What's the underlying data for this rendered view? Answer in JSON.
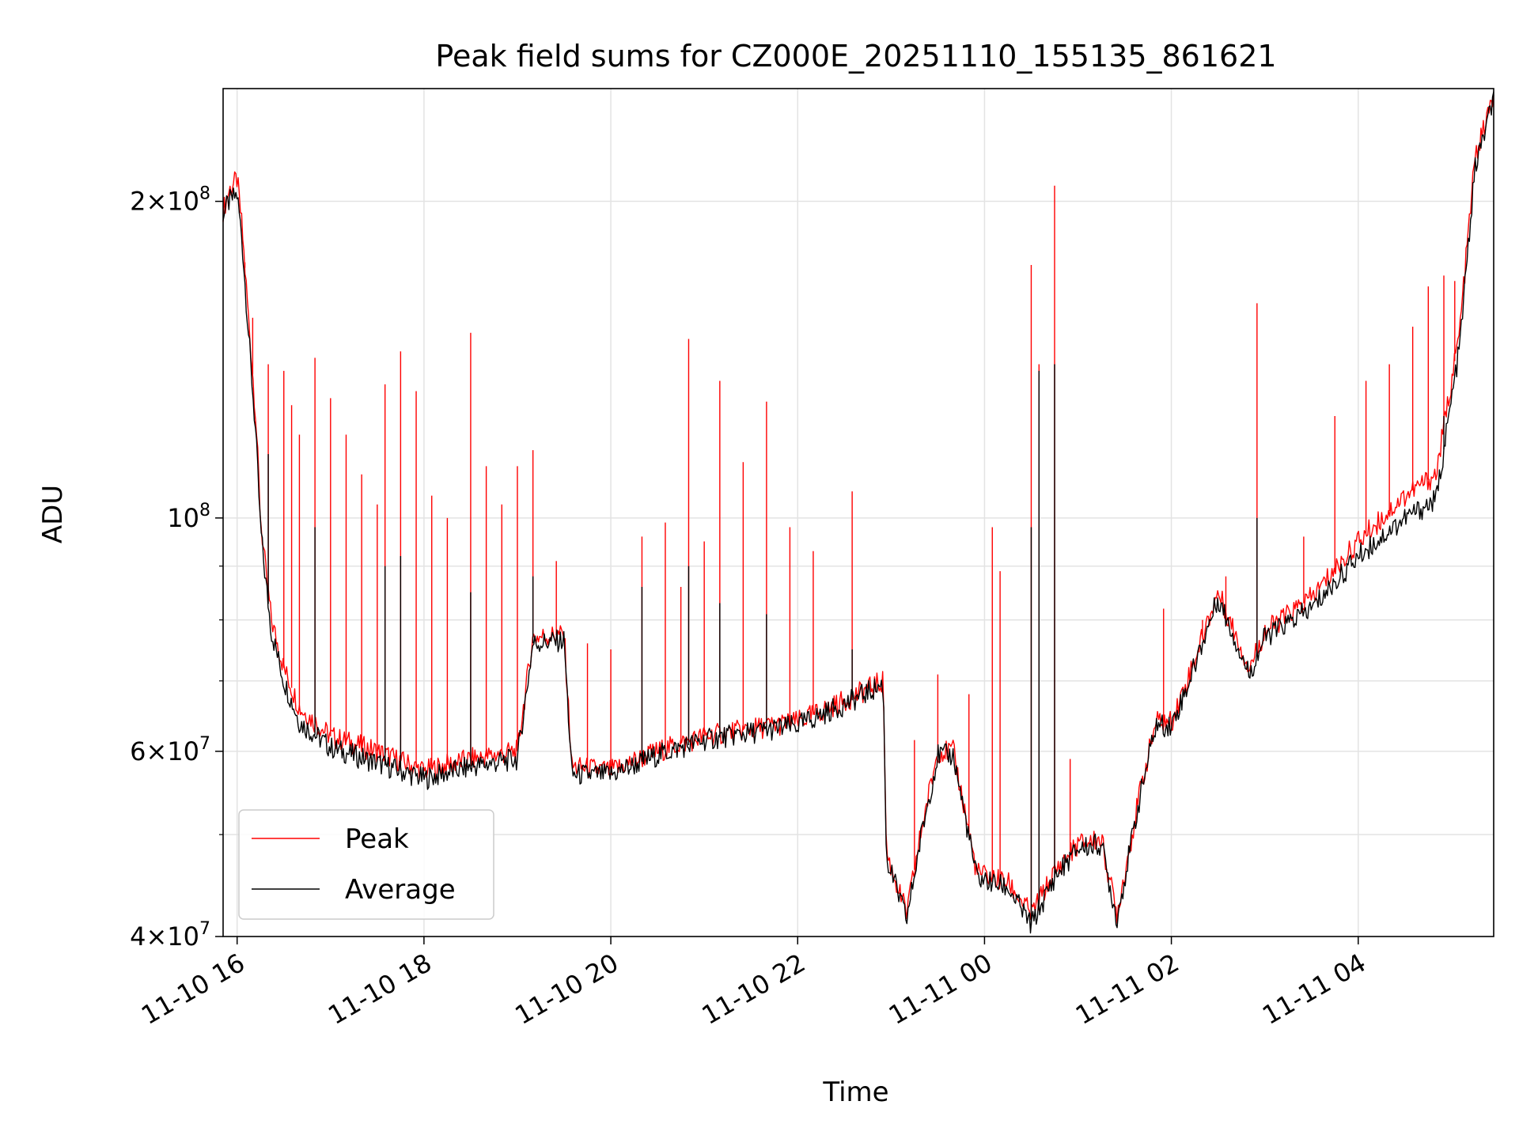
{
  "chart_data": {
    "type": "line",
    "title": "Peak field sums for CZ000E_20251110_155135_861621",
    "xlabel": "Time",
    "ylabel": "ADU",
    "yscale": "log",
    "ylim": [
      40000000,
      256000000
    ],
    "xlim": [
      "2025-11-10 15:51",
      "2025-11-11 05:27"
    ],
    "x_ticks": [
      {
        "t": "2025-11-10 16:00",
        "label": "11-10 16"
      },
      {
        "t": "2025-11-10 18:00",
        "label": "11-10 18"
      },
      {
        "t": "2025-11-10 20:00",
        "label": "11-10 20"
      },
      {
        "t": "2025-11-10 22:00",
        "label": "11-10 22"
      },
      {
        "t": "2025-11-11 00:00",
        "label": "11-11 00"
      },
      {
        "t": "2025-11-11 02:00",
        "label": "11-11 02"
      },
      {
        "t": "2025-11-11 04:00",
        "label": "11-11 04"
      }
    ],
    "y_ticks": [
      {
        "v": 40000000,
        "mant": "4",
        "exp": "7"
      },
      {
        "v": 60000000,
        "mant": "6",
        "exp": "7"
      },
      {
        "v": 100000000,
        "mant": "",
        "exp": "8"
      },
      {
        "v": 200000000,
        "mant": "2",
        "exp": "8"
      }
    ],
    "y_minor_gridlines": [
      50000000,
      70000000,
      80000000,
      90000000
    ],
    "grid": true,
    "legend_position": "lower-left",
    "series": [
      {
        "name": "Peak",
        "color": "#ff0000",
        "points": [
          [
            "2025-11-10 15:51",
            196000000
          ],
          [
            "2025-11-10 15:55",
            205000000
          ],
          [
            "2025-11-10 16:00",
            210000000
          ],
          [
            "2025-11-10 16:03",
            190000000
          ],
          [
            "2025-11-10 16:08",
            150000000
          ],
          [
            "2025-11-10 16:12",
            125000000
          ],
          [
            "2025-11-10 16:15",
            100000000
          ],
          [
            "2025-11-10 16:18",
            90000000
          ],
          [
            "2025-11-10 16:22",
            80000000
          ],
          [
            "2025-11-10 16:30",
            72000000
          ],
          [
            "2025-11-10 16:40",
            66000000
          ],
          [
            "2025-11-10 17:00",
            62000000
          ],
          [
            "2025-11-10 17:30",
            60000000
          ],
          [
            "2025-11-10 18:00",
            57500000
          ],
          [
            "2025-11-10 18:30",
            59000000
          ],
          [
            "2025-11-10 19:00",
            60000000
          ],
          [
            "2025-11-10 19:10",
            77000000
          ],
          [
            "2025-11-10 19:30",
            77500000
          ],
          [
            "2025-11-10 19:35",
            58000000
          ],
          [
            "2025-11-10 20:00",
            57500000
          ],
          [
            "2025-11-10 20:30",
            60000000
          ],
          [
            "2025-11-10 21:00",
            62000000
          ],
          [
            "2025-11-10 21:30",
            63000000
          ],
          [
            "2025-11-10 22:00",
            64000000
          ],
          [
            "2025-11-10 22:30",
            67000000
          ],
          [
            "2025-11-10 22:55",
            70000000
          ],
          [
            "2025-11-10 22:57",
            48000000
          ],
          [
            "2025-11-10 23:10",
            42000000
          ],
          [
            "2025-11-10 23:20",
            51000000
          ],
          [
            "2025-11-10 23:30",
            60000000
          ],
          [
            "2025-11-10 23:40",
            60000000
          ],
          [
            "2025-11-10 23:55",
            46000000
          ],
          [
            "2025-11-11 00:15",
            45000000
          ],
          [
            "2025-11-11 00:30",
            42000000
          ],
          [
            "2025-11-11 00:45",
            46000000
          ],
          [
            "2025-11-11 01:00",
            49000000
          ],
          [
            "2025-11-11 01:15",
            49500000
          ],
          [
            "2025-11-11 01:25",
            42000000
          ],
          [
            "2025-11-11 01:40",
            55000000
          ],
          [
            "2025-11-11 01:50",
            64000000
          ],
          [
            "2025-11-11 02:00",
            64000000
          ],
          [
            "2025-11-11 02:10",
            70000000
          ],
          [
            "2025-11-11 02:30",
            85000000
          ],
          [
            "2025-11-11 02:50",
            72000000
          ],
          [
            "2025-11-11 03:00",
            78000000
          ],
          [
            "2025-11-11 03:30",
            84000000
          ],
          [
            "2025-11-11 04:00",
            95000000
          ],
          [
            "2025-11-11 04:30",
            105000000
          ],
          [
            "2025-11-11 04:50",
            110000000
          ],
          [
            "2025-11-11 05:05",
            150000000
          ],
          [
            "2025-11-11 05:15",
            220000000
          ],
          [
            "2025-11-11 05:27",
            252000000
          ]
        ],
        "spikes": [
          [
            "2025-11-10 16:05",
            175000000
          ],
          [
            "2025-11-10 16:10",
            155000000
          ],
          [
            "2025-11-10 16:20",
            140000000
          ],
          [
            "2025-11-10 16:30",
            138000000
          ],
          [
            "2025-11-10 16:35",
            128000000
          ],
          [
            "2025-11-10 16:40",
            120000000
          ],
          [
            "2025-11-10 16:50",
            142000000
          ],
          [
            "2025-11-10 17:00",
            130000000
          ],
          [
            "2025-11-10 17:10",
            120000000
          ],
          [
            "2025-11-10 17:20",
            110000000
          ],
          [
            "2025-11-10 17:30",
            103000000
          ],
          [
            "2025-11-10 17:35",
            134000000
          ],
          [
            "2025-11-10 17:45",
            144000000
          ],
          [
            "2025-11-10 17:55",
            132000000
          ],
          [
            "2025-11-10 18:05",
            105000000
          ],
          [
            "2025-11-10 18:15",
            100000000
          ],
          [
            "2025-11-10 18:30",
            150000000
          ],
          [
            "2025-11-10 18:40",
            112000000
          ],
          [
            "2025-11-10 18:50",
            103000000
          ],
          [
            "2025-11-10 19:00",
            112000000
          ],
          [
            "2025-11-10 19:10",
            116000000
          ],
          [
            "2025-11-10 19:25",
            91000000
          ],
          [
            "2025-11-10 19:45",
            76000000
          ],
          [
            "2025-11-10 20:00",
            75000000
          ],
          [
            "2025-11-10 20:20",
            96000000
          ],
          [
            "2025-11-10 20:35",
            99000000
          ],
          [
            "2025-11-10 20:45",
            86000000
          ],
          [
            "2025-11-10 20:50",
            148000000
          ],
          [
            "2025-11-10 21:00",
            95000000
          ],
          [
            "2025-11-10 21:10",
            135000000
          ],
          [
            "2025-11-10 21:25",
            113000000
          ],
          [
            "2025-11-10 21:40",
            129000000
          ],
          [
            "2025-11-10 21:55",
            98000000
          ],
          [
            "2025-11-10 22:10",
            93000000
          ],
          [
            "2025-11-10 22:35",
            106000000
          ],
          [
            "2025-11-10 23:15",
            61500000
          ],
          [
            "2025-11-10 23:30",
            71000000
          ],
          [
            "2025-11-10 23:50",
            68000000
          ],
          [
            "2025-11-11 00:05",
            98000000
          ],
          [
            "2025-11-11 00:10",
            89000000
          ],
          [
            "2025-11-11 00:30",
            174000000
          ],
          [
            "2025-11-11 00:35",
            140000000
          ],
          [
            "2025-11-11 00:45",
            207000000
          ],
          [
            "2025-11-11 00:55",
            59000000
          ],
          [
            "2025-11-11 01:55",
            82000000
          ],
          [
            "2025-11-11 02:20",
            80000000
          ],
          [
            "2025-11-11 02:35",
            88000000
          ],
          [
            "2025-11-11 02:55",
            160000000
          ],
          [
            "2025-11-11 03:25",
            96000000
          ],
          [
            "2025-11-11 03:45",
            125000000
          ],
          [
            "2025-11-11 04:05",
            135000000
          ],
          [
            "2025-11-11 04:20",
            140000000
          ],
          [
            "2025-11-11 04:35",
            152000000
          ],
          [
            "2025-11-11 04:45",
            166000000
          ],
          [
            "2025-11-11 04:55",
            170000000
          ],
          [
            "2025-11-11 05:02",
            168000000
          ]
        ]
      },
      {
        "name": "Average",
        "color": "#000000",
        "points": [
          [
            "2025-11-10 15:51",
            195000000
          ],
          [
            "2025-11-10 15:55",
            200000000
          ],
          [
            "2025-11-10 16:00",
            203000000
          ],
          [
            "2025-11-10 16:03",
            185000000
          ],
          [
            "2025-11-10 16:08",
            145000000
          ],
          [
            "2025-11-10 16:12",
            120000000
          ],
          [
            "2025-11-10 16:15",
            98000000
          ],
          [
            "2025-11-10 16:18",
            88000000
          ],
          [
            "2025-11-10 16:22",
            78000000
          ],
          [
            "2025-11-10 16:30",
            70000000
          ],
          [
            "2025-11-10 16:40",
            64000000
          ],
          [
            "2025-11-10 17:00",
            60500000
          ],
          [
            "2025-11-10 17:30",
            58500000
          ],
          [
            "2025-11-10 18:00",
            56500000
          ],
          [
            "2025-11-10 18:30",
            58000000
          ],
          [
            "2025-11-10 19:00",
            59000000
          ],
          [
            "2025-11-10 19:10",
            76000000
          ],
          [
            "2025-11-10 19:30",
            76500000
          ],
          [
            "2025-11-10 19:35",
            57000000
          ],
          [
            "2025-11-10 20:00",
            57000000
          ],
          [
            "2025-11-10 20:30",
            59500000
          ],
          [
            "2025-11-10 21:00",
            61500000
          ],
          [
            "2025-11-10 21:30",
            62500000
          ],
          [
            "2025-11-10 22:00",
            63500000
          ],
          [
            "2025-11-10 22:30",
            66500000
          ],
          [
            "2025-11-10 22:55",
            69500000
          ],
          [
            "2025-11-10 22:57",
            47500000
          ],
          [
            "2025-11-10 23:10",
            41500000
          ],
          [
            "2025-11-10 23:20",
            50500000
          ],
          [
            "2025-11-10 23:30",
            59500000
          ],
          [
            "2025-11-10 23:40",
            59500000
          ],
          [
            "2025-11-10 23:55",
            45500000
          ],
          [
            "2025-11-11 00:15",
            44500000
          ],
          [
            "2025-11-11 00:30",
            41000000
          ],
          [
            "2025-11-11 00:45",
            45500000
          ],
          [
            "2025-11-11 01:00",
            48500000
          ],
          [
            "2025-11-11 01:15",
            49000000
          ],
          [
            "2025-11-11 01:25",
            41500000
          ],
          [
            "2025-11-11 01:40",
            54500000
          ],
          [
            "2025-11-11 01:50",
            63500000
          ],
          [
            "2025-11-11 02:00",
            63500000
          ],
          [
            "2025-11-11 02:10",
            69000000
          ],
          [
            "2025-11-11 02:30",
            84000000
          ],
          [
            "2025-11-11 02:50",
            71000000
          ],
          [
            "2025-11-11 03:00",
            77000000
          ],
          [
            "2025-11-11 03:30",
            82000000
          ],
          [
            "2025-11-11 04:00",
            92000000
          ],
          [
            "2025-11-11 04:30",
            100000000
          ],
          [
            "2025-11-11 04:50",
            104000000
          ],
          [
            "2025-11-11 05:05",
            145000000
          ],
          [
            "2025-11-11 05:15",
            215000000
          ],
          [
            "2025-11-11 05:27",
            250000000
          ]
        ],
        "spikes": [
          [
            "2025-11-10 16:20",
            115000000
          ],
          [
            "2025-11-10 16:50",
            98000000
          ],
          [
            "2025-11-10 17:35",
            90000000
          ],
          [
            "2025-11-10 17:45",
            92000000
          ],
          [
            "2025-11-10 18:30",
            85000000
          ],
          [
            "2025-11-10 19:10",
            88000000
          ],
          [
            "2025-11-10 20:20",
            86000000
          ],
          [
            "2025-11-10 20:50",
            90000000
          ],
          [
            "2025-11-10 21:10",
            83000000
          ],
          [
            "2025-11-10 21:40",
            81000000
          ],
          [
            "2025-11-10 22:35",
            75000000
          ],
          [
            "2025-11-11 00:30",
            98000000
          ],
          [
            "2025-11-11 00:35",
            138000000
          ],
          [
            "2025-11-11 00:45",
            140000000
          ],
          [
            "2025-11-11 02:55",
            100000000
          ],
          [
            "2025-11-11 04:55",
            125000000
          ]
        ]
      }
    ]
  }
}
